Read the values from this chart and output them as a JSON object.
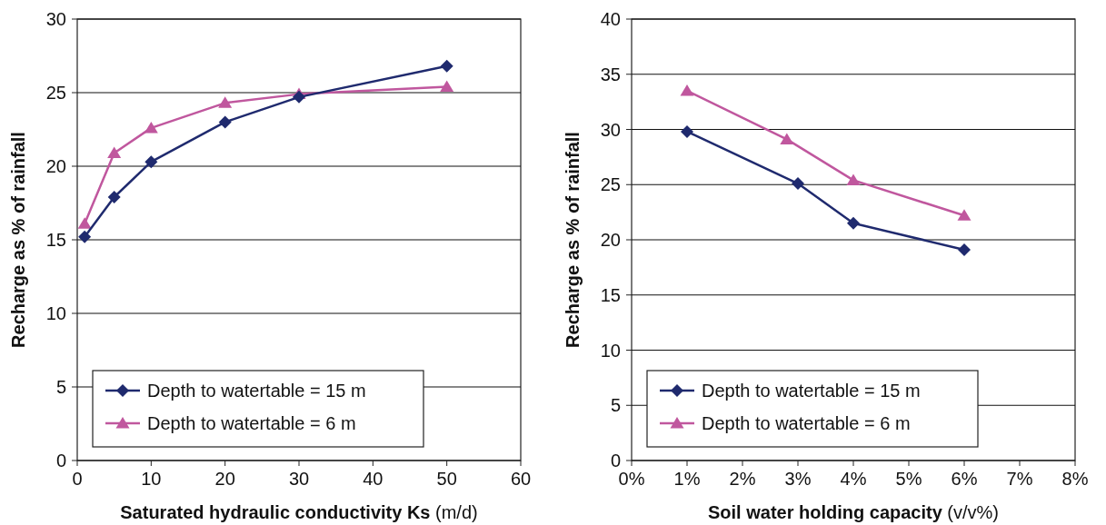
{
  "chart_data": [
    {
      "type": "line",
      "xlabel": "Saturated hydraulic conductivity Ks (m/d)",
      "ylabel": "Recharge as % of rainfall",
      "xlim": [
        0,
        60
      ],
      "xticks": [
        0,
        10,
        20,
        30,
        40,
        50,
        60
      ],
      "ylim": [
        0,
        30
      ],
      "yticks": [
        0,
        5,
        10,
        15,
        20,
        25,
        30
      ],
      "grid": "y",
      "legend": "bottom left",
      "x": [
        1,
        5,
        10,
        20,
        30,
        50
      ],
      "series": [
        {
          "name": "Depth to watertable = 15 m",
          "color": "#1f2a6e",
          "marker": "diamond",
          "values": [
            15.2,
            17.9,
            20.3,
            23.0,
            24.7,
            26.8
          ]
        },
        {
          "name": "Depth to watertable = 6 m",
          "color": "#c0579e",
          "marker": "triangle",
          "values": [
            16.1,
            20.9,
            22.6,
            24.3,
            24.9,
            25.4
          ]
        }
      ]
    },
    {
      "type": "line",
      "xlabel": "Soil water holding capacity (v/v%)",
      "ylabel": "Recharge as % of rainfall",
      "xlim": [
        0,
        8
      ],
      "xticks": [
        {
          "value": 0,
          "label": "0%"
        },
        {
          "value": 1,
          "label": "1%"
        },
        {
          "value": 2,
          "label": "2%"
        },
        {
          "value": 3,
          "label": "3%"
        },
        {
          "value": 4,
          "label": "4%"
        },
        {
          "value": 5,
          "label": "5%"
        },
        {
          "value": 6,
          "label": "6%"
        },
        {
          "value": 7,
          "label": "7%"
        },
        {
          "value": 8,
          "label": "8%"
        }
      ],
      "ylim": [
        0,
        40
      ],
      "yticks": [
        0,
        5,
        10,
        15,
        20,
        25,
        30,
        35,
        40
      ],
      "grid": "y",
      "legend": "bottom left",
      "series": [
        {
          "name": "Depth to watertable = 15 m",
          "color": "#1f2a6e",
          "marker": "diamond",
          "x": [
            1,
            3,
            4,
            6
          ],
          "values": [
            29.8,
            25.1,
            21.5,
            19.1
          ]
        },
        {
          "name": "Depth to watertable = 6 m",
          "color": "#c0579e",
          "marker": "triangle",
          "x": [
            1,
            2.8,
            4,
            6
          ],
          "values": [
            33.5,
            29.1,
            25.4,
            22.2
          ]
        }
      ]
    }
  ]
}
